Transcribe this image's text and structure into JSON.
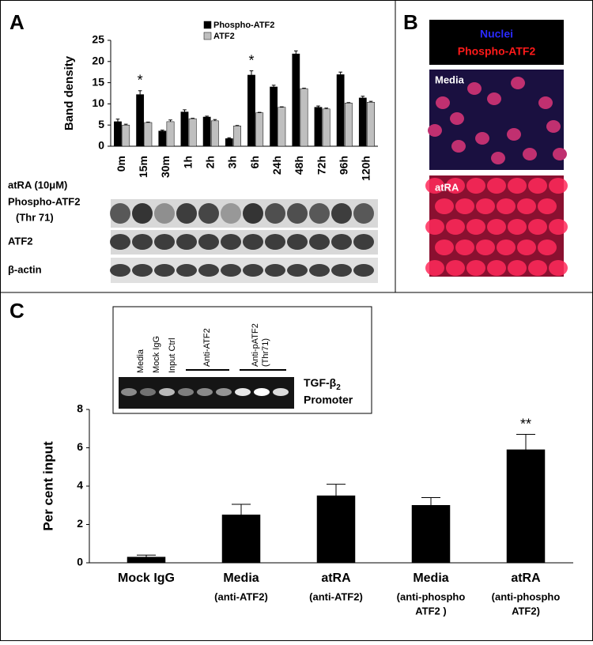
{
  "panels": {
    "a": "A",
    "b": "B",
    "c": "C"
  },
  "blot": {
    "treatment": "atRA (10μM)",
    "rows": [
      [
        "Phospho-ATF2",
        "(Thr 71)"
      ],
      [
        "ATF2"
      ],
      [
        "β-actin"
      ]
    ]
  },
  "microscopy": {
    "legend": [
      "Nuclei",
      "Phospho-ATF2"
    ],
    "images": [
      "Media",
      "atRA"
    ]
  },
  "gel": {
    "lanes": [
      "Media",
      "Mock IgG",
      "Input Ctrl",
      "Anti-ATF2",
      "Anti-pATF2",
      "(Thr71)"
    ],
    "target": "TGF-β",
    "target_sub": "2",
    "target_line2": "Promoter"
  },
  "chart_data": [
    {
      "type": "bar",
      "ylabel": "Band density",
      "categories": [
        "0m",
        "15m",
        "30m",
        "1h",
        "2h",
        "3h",
        "6h",
        "24h",
        "48h",
        "72h",
        "96h",
        "120h"
      ],
      "series": [
        {
          "name": "Phospho-ATF2",
          "color": "#000000",
          "values": [
            5.8,
            12.2,
            3.6,
            8.1,
            6.9,
            1.8,
            16.8,
            14.0,
            21.8,
            9.2,
            16.9,
            11.4
          ],
          "errors": [
            0.6,
            0.9,
            0.2,
            0.5,
            0.2,
            0.2,
            1.0,
            0.4,
            0.7,
            0.3,
            0.6,
            0.4
          ]
        },
        {
          "name": "ATF2",
          "color": "#bfbfbf",
          "values": [
            5.0,
            5.6,
            5.8,
            6.5,
            6.0,
            4.8,
            7.9,
            9.2,
            13.6,
            8.8,
            10.2,
            10.4
          ],
          "errors": [
            0.2,
            0.1,
            0.4,
            0.1,
            0.3,
            0.1,
            0.1,
            0.1,
            0.1,
            0.2,
            0.1,
            0.2
          ]
        }
      ],
      "ylim": [
        0,
        25
      ],
      "yticks": [
        0,
        5,
        10,
        15,
        20,
        25
      ],
      "legend": "top",
      "annotations": [
        {
          "text": "*",
          "category": "15m"
        },
        {
          "text": "*",
          "category": "6h"
        }
      ]
    },
    {
      "type": "bar",
      "ylabel": "Per cent input",
      "categories": [
        [
          "Mock  IgG"
        ],
        [
          "Media",
          "(anti-ATF2)"
        ],
        [
          "atRA",
          "(anti-ATF2)"
        ],
        [
          "Media",
          "(anti-phospho",
          "ATF2 )"
        ],
        [
          "atRA",
          "(anti-phospho",
          "ATF2)"
        ]
      ],
      "values": [
        0.3,
        2.5,
        3.5,
        3.0,
        5.9
      ],
      "errors": [
        0.1,
        0.55,
        0.6,
        0.4,
        0.8
      ],
      "color": "#000000",
      "ylim": [
        0,
        8
      ],
      "yticks": [
        0,
        2,
        4,
        6,
        8
      ],
      "annotations": [
        {
          "text": "**",
          "category": 4
        }
      ]
    }
  ]
}
